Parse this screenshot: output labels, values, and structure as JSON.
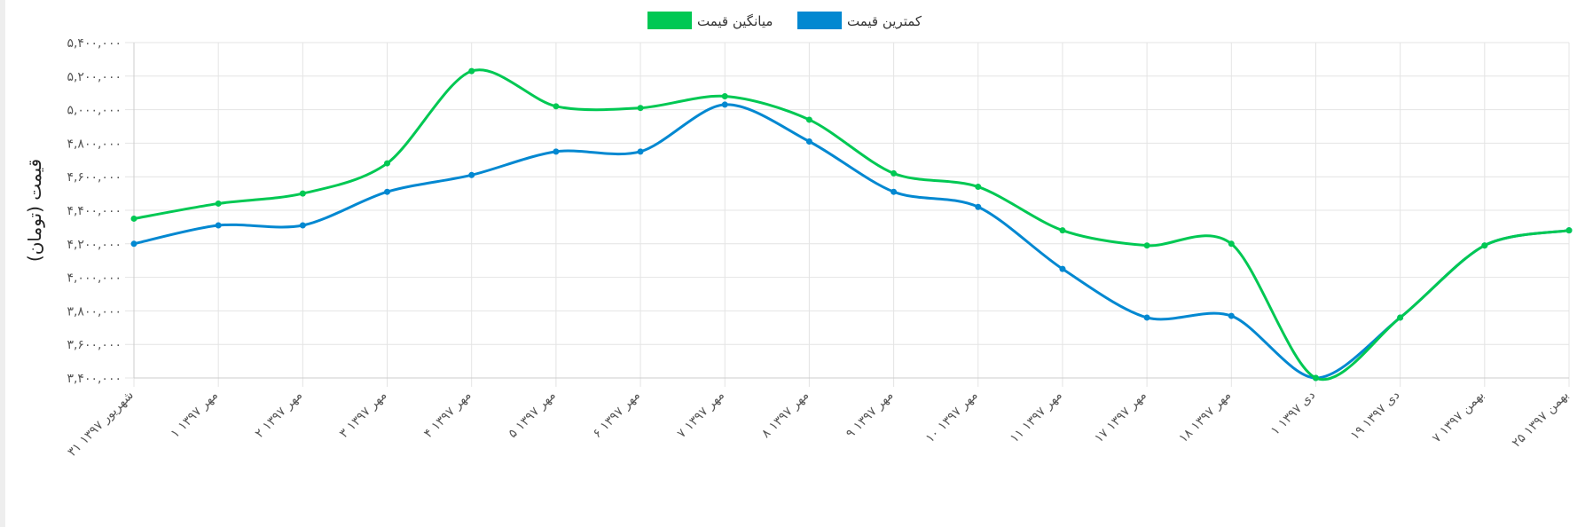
{
  "chart_data": {
    "type": "line",
    "ylabel": "قیمت (تومان)",
    "ylim": [
      3400000,
      5400000
    ],
    "yticks": [
      {
        "value": 3400000,
        "label": "۳,۴۰۰,۰۰۰"
      },
      {
        "value": 3600000,
        "label": "۳,۶۰۰,۰۰۰"
      },
      {
        "value": 3800000,
        "label": "۳,۸۰۰,۰۰۰"
      },
      {
        "value": 4000000,
        "label": "۴,۰۰۰,۰۰۰"
      },
      {
        "value": 4200000,
        "label": "۴,۲۰۰,۰۰۰"
      },
      {
        "value": 4400000,
        "label": "۴,۴۰۰,۰۰۰"
      },
      {
        "value": 4600000,
        "label": "۴,۶۰۰,۰۰۰"
      },
      {
        "value": 4800000,
        "label": "۴,۸۰۰,۰۰۰"
      },
      {
        "value": 5000000,
        "label": "۵,۰۰۰,۰۰۰"
      },
      {
        "value": 5200000,
        "label": "۵,۲۰۰,۰۰۰"
      },
      {
        "value": 5400000,
        "label": "۵,۴۰۰,۰۰۰"
      }
    ],
    "categories": [
      "۳۱ شهریور ۱۳۹۷",
      "۱ مهر ۱۳۹۷",
      "۲ مهر ۱۳۹۷",
      "۳ مهر ۱۳۹۷",
      "۴ مهر ۱۳۹۷",
      "۵ مهر ۱۳۹۷",
      "۶ مهر ۱۳۹۷",
      "۷ مهر ۱۳۹۷",
      "۸ مهر ۱۳۹۷",
      "۹ مهر ۱۳۹۷",
      "۱۰ مهر ۱۳۹۷",
      "۱۱ مهر ۱۳۹۷",
      "۱۷ مهر ۱۳۹۷",
      "۱۸ مهر ۱۳۹۷",
      "۱ دی ۱۳۹۷",
      "۱۹ دی ۱۳۹۷",
      "۷ بهمن ۱۳۹۷",
      "۲۵ بهمن ۱۳۹۷"
    ],
    "series": [
      {
        "name": "میانگین قیمت",
        "color": "#00c853",
        "values": [
          4350000,
          4440000,
          4500000,
          4680000,
          5230000,
          5020000,
          5010000,
          5080000,
          4940000,
          4620000,
          4540000,
          4280000,
          4190000,
          4200000,
          3400000,
          3760000,
          4190000,
          4280000
        ]
      },
      {
        "name": "کمترین قیمت",
        "color": "#0288d1",
        "values": [
          4200000,
          4310000,
          4310000,
          4510000,
          4610000,
          4750000,
          4750000,
          5030000,
          4810000,
          4510000,
          4420000,
          4050000,
          3760000,
          3770000,
          3400000,
          3760000,
          4190000,
          4280000
        ]
      }
    ],
    "legend_position": "top-center",
    "grid": true
  }
}
